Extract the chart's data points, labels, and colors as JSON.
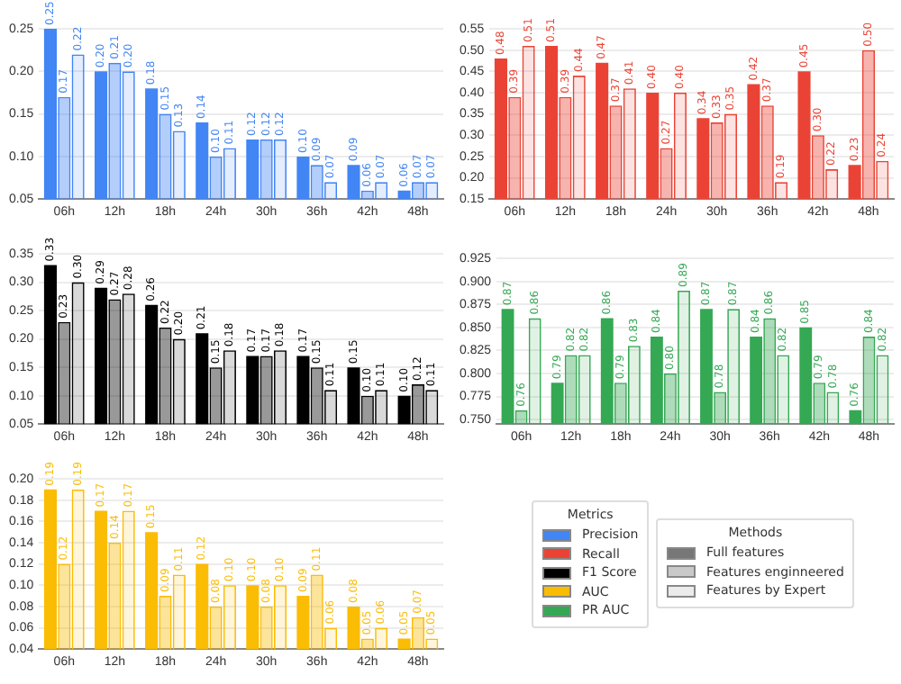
{
  "chart_data": [
    {
      "type": "bar",
      "categories": [
        "06h",
        "12h",
        "18h",
        "24h",
        "30h",
        "36h",
        "42h",
        "48h"
      ],
      "ylim": [
        0.05,
        0.25
      ],
      "yticks": [
        {
          "value": 0.05,
          "label": "0.05"
        },
        {
          "value": 0.1,
          "label": "0.10"
        },
        {
          "value": 0.15,
          "label": "0.15"
        },
        {
          "value": 0.2,
          "label": "0.20"
        },
        {
          "value": 0.25,
          "label": "0.25"
        }
      ],
      "grid": "y",
      "series": [
        {
          "color": "#4285f4",
          "values": [
            0.25,
            0.2,
            0.18,
            0.14,
            0.12,
            0.1,
            0.09,
            0.06
          ],
          "value_labels": [
            "0.25",
            "0.20",
            "0.18",
            "0.14",
            "0.12",
            "0.10",
            "0.09",
            "0.06"
          ]
        },
        {
          "color": "#4285f4",
          "values": [
            0.17,
            0.21,
            0.15,
            0.1,
            0.12,
            0.09,
            0.06,
            0.07
          ],
          "value_labels": [
            "0.17",
            "0.21",
            "0.15",
            "0.10",
            "0.12",
            "0.09",
            "0.06",
            "0.07"
          ]
        },
        {
          "color": "#4285f4",
          "values": [
            0.22,
            0.2,
            0.13,
            0.11,
            0.12,
            0.07,
            0.07,
            0.07
          ],
          "value_labels": [
            "0.22",
            "0.20",
            "0.13",
            "0.11",
            "0.12",
            "0.07",
            "0.07",
            "0.07"
          ]
        }
      ]
    },
    {
      "type": "bar",
      "categories": [
        "06h",
        "12h",
        "18h",
        "24h",
        "30h",
        "36h",
        "42h",
        "48h"
      ],
      "ylim": [
        0.15,
        0.55
      ],
      "yticks": [
        {
          "value": 0.15,
          "label": "0.15"
        },
        {
          "value": 0.2,
          "label": "0.20"
        },
        {
          "value": 0.25,
          "label": "0.25"
        },
        {
          "value": 0.3,
          "label": "0.30"
        },
        {
          "value": 0.35,
          "label": "0.35"
        },
        {
          "value": 0.4,
          "label": "0.40"
        },
        {
          "value": 0.45,
          "label": "0.45"
        },
        {
          "value": 0.5,
          "label": "0.50"
        },
        {
          "value": 0.55,
          "label": "0.55"
        }
      ],
      "grid": "y",
      "series": [
        {
          "color": "#ea4335",
          "values": [
            0.48,
            0.51,
            0.47,
            0.4,
            0.34,
            0.42,
            0.45,
            0.23
          ],
          "value_labels": [
            "0.48",
            "0.51",
            "0.47",
            "0.40",
            "0.34",
            "0.42",
            "0.45",
            "0.23"
          ]
        },
        {
          "color": "#ea4335",
          "values": [
            0.39,
            0.39,
            0.37,
            0.27,
            0.33,
            0.37,
            0.3,
            0.5
          ],
          "value_labels": [
            "0.39",
            "0.39",
            "0.37",
            "0.27",
            "0.33",
            "0.37",
            "0.30",
            "0.50"
          ]
        },
        {
          "color": "#ea4335",
          "values": [
            0.51,
            0.44,
            0.41,
            0.4,
            0.35,
            0.19,
            0.22,
            0.24
          ],
          "value_labels": [
            "0.51",
            "0.44",
            "0.41",
            "0.40",
            "0.35",
            "0.19",
            "0.22",
            "0.24"
          ]
        }
      ]
    },
    {
      "type": "bar",
      "categories": [
        "06h",
        "12h",
        "18h",
        "24h",
        "30h",
        "36h",
        "42h",
        "48h"
      ],
      "ylim": [
        0.05,
        0.35
      ],
      "yticks": [
        {
          "value": 0.05,
          "label": "0.05"
        },
        {
          "value": 0.1,
          "label": "0.10"
        },
        {
          "value": 0.15,
          "label": "0.15"
        },
        {
          "value": 0.2,
          "label": "0.20"
        },
        {
          "value": 0.25,
          "label": "0.25"
        },
        {
          "value": 0.3,
          "label": "0.30"
        },
        {
          "value": 0.35,
          "label": "0.35"
        }
      ],
      "grid": "y",
      "series": [
        {
          "color": "#000000",
          "values": [
            0.33,
            0.29,
            0.26,
            0.21,
            0.17,
            0.17,
            0.15,
            0.1
          ],
          "value_labels": [
            "0.33",
            "0.29",
            "0.26",
            "0.21",
            "0.17",
            "0.17",
            "0.15",
            "0.10"
          ]
        },
        {
          "color": "#000000",
          "values": [
            0.23,
            0.27,
            0.22,
            0.15,
            0.17,
            0.15,
            0.1,
            0.12
          ],
          "value_labels": [
            "0.23",
            "0.27",
            "0.22",
            "0.15",
            "0.17",
            "0.15",
            "0.10",
            "0.12"
          ]
        },
        {
          "color": "#000000",
          "values": [
            0.3,
            0.28,
            0.2,
            0.18,
            0.18,
            0.11,
            0.11,
            0.11
          ],
          "value_labels": [
            "0.30",
            "0.28",
            "0.20",
            "0.18",
            "0.18",
            "0.11",
            "0.11",
            "0.11"
          ]
        }
      ]
    },
    {
      "type": "bar",
      "categories": [
        "06h",
        "12h",
        "18h",
        "24h",
        "30h",
        "36h",
        "42h",
        "48h"
      ],
      "ylim": [
        0.745,
        0.93
      ],
      "yticks": [
        {
          "value": 0.75,
          "label": "0.750"
        },
        {
          "value": 0.775,
          "label": "0.775"
        },
        {
          "value": 0.8,
          "label": "0.800"
        },
        {
          "value": 0.825,
          "label": "0.825"
        },
        {
          "value": 0.85,
          "label": "0.850"
        },
        {
          "value": 0.875,
          "label": "0.875"
        },
        {
          "value": 0.9,
          "label": "0.900"
        },
        {
          "value": 0.925,
          "label": "0.925"
        }
      ],
      "grid": "y",
      "series": [
        {
          "color": "#34a853",
          "values": [
            0.87,
            0.79,
            0.86,
            0.84,
            0.87,
            0.84,
            0.85,
            0.76
          ],
          "value_labels": [
            "0.87",
            "0.79",
            "0.86",
            "0.84",
            "0.87",
            "0.84",
            "0.85",
            "0.76"
          ]
        },
        {
          "color": "#34a853",
          "values": [
            0.76,
            0.82,
            0.79,
            0.8,
            0.78,
            0.86,
            0.79,
            0.84
          ],
          "value_labels": [
            "0.76",
            "0.82",
            "0.79",
            "0.80",
            "0.78",
            "0.86",
            "0.79",
            "0.84"
          ]
        },
        {
          "color": "#34a853",
          "values": [
            0.86,
            0.82,
            0.83,
            0.89,
            0.87,
            0.82,
            0.78,
            0.82
          ],
          "value_labels": [
            "0.86",
            "0.82",
            "0.83",
            "0.89",
            "0.87",
            "0.82",
            "0.78",
            "0.82"
          ]
        }
      ]
    },
    {
      "type": "bar",
      "categories": [
        "06h",
        "12h",
        "18h",
        "24h",
        "30h",
        "36h",
        "42h",
        "48h"
      ],
      "ylim": [
        0.04,
        0.2
      ],
      "yticks": [
        {
          "value": 0.04,
          "label": "0.04"
        },
        {
          "value": 0.06,
          "label": "0.06"
        },
        {
          "value": 0.08,
          "label": "0.08"
        },
        {
          "value": 0.1,
          "label": "0.10"
        },
        {
          "value": 0.12,
          "label": "0.12"
        },
        {
          "value": 0.14,
          "label": "0.14"
        },
        {
          "value": 0.16,
          "label": "0.16"
        },
        {
          "value": 0.18,
          "label": "0.18"
        },
        {
          "value": 0.2,
          "label": "0.20"
        }
      ],
      "grid": "y",
      "series": [
        {
          "color": "#fbbc04",
          "values": [
            0.19,
            0.17,
            0.15,
            0.12,
            0.1,
            0.09,
            0.08,
            0.05
          ],
          "value_labels": [
            "0.19",
            "0.17",
            "0.15",
            "0.12",
            "0.10",
            "0.09",
            "0.08",
            "0.05"
          ]
        },
        {
          "color": "#fbbc04",
          "values": [
            0.12,
            0.14,
            0.09,
            0.08,
            0.08,
            0.11,
            0.05,
            0.07
          ],
          "value_labels": [
            "0.12",
            "0.14",
            "0.09",
            "0.08",
            "0.08",
            "0.11",
            "0.05",
            "0.07"
          ]
        },
        {
          "color": "#fbbc04",
          "values": [
            0.19,
            0.17,
            0.11,
            0.1,
            0.1,
            0.06,
            0.06,
            0.05
          ],
          "value_labels": [
            "0.19",
            "0.17",
            "0.11",
            "0.10",
            "0.10",
            "0.06",
            "0.06",
            "0.05"
          ]
        }
      ]
    },
    {
      "type": "other",
      "title": "Metrics",
      "annotations": [
        "Precision",
        "Recall",
        "F1 Score",
        "AUC",
        "PR AUC"
      ],
      "colors": [
        "#4285f4",
        "#ea4335",
        "#000000",
        "#fbbc04",
        "#34a853"
      ]
    },
    {
      "type": "other",
      "title": "Methods",
      "annotations": [
        "Full features",
        "Features enginneered",
        "Features by Expert"
      ]
    }
  ]
}
